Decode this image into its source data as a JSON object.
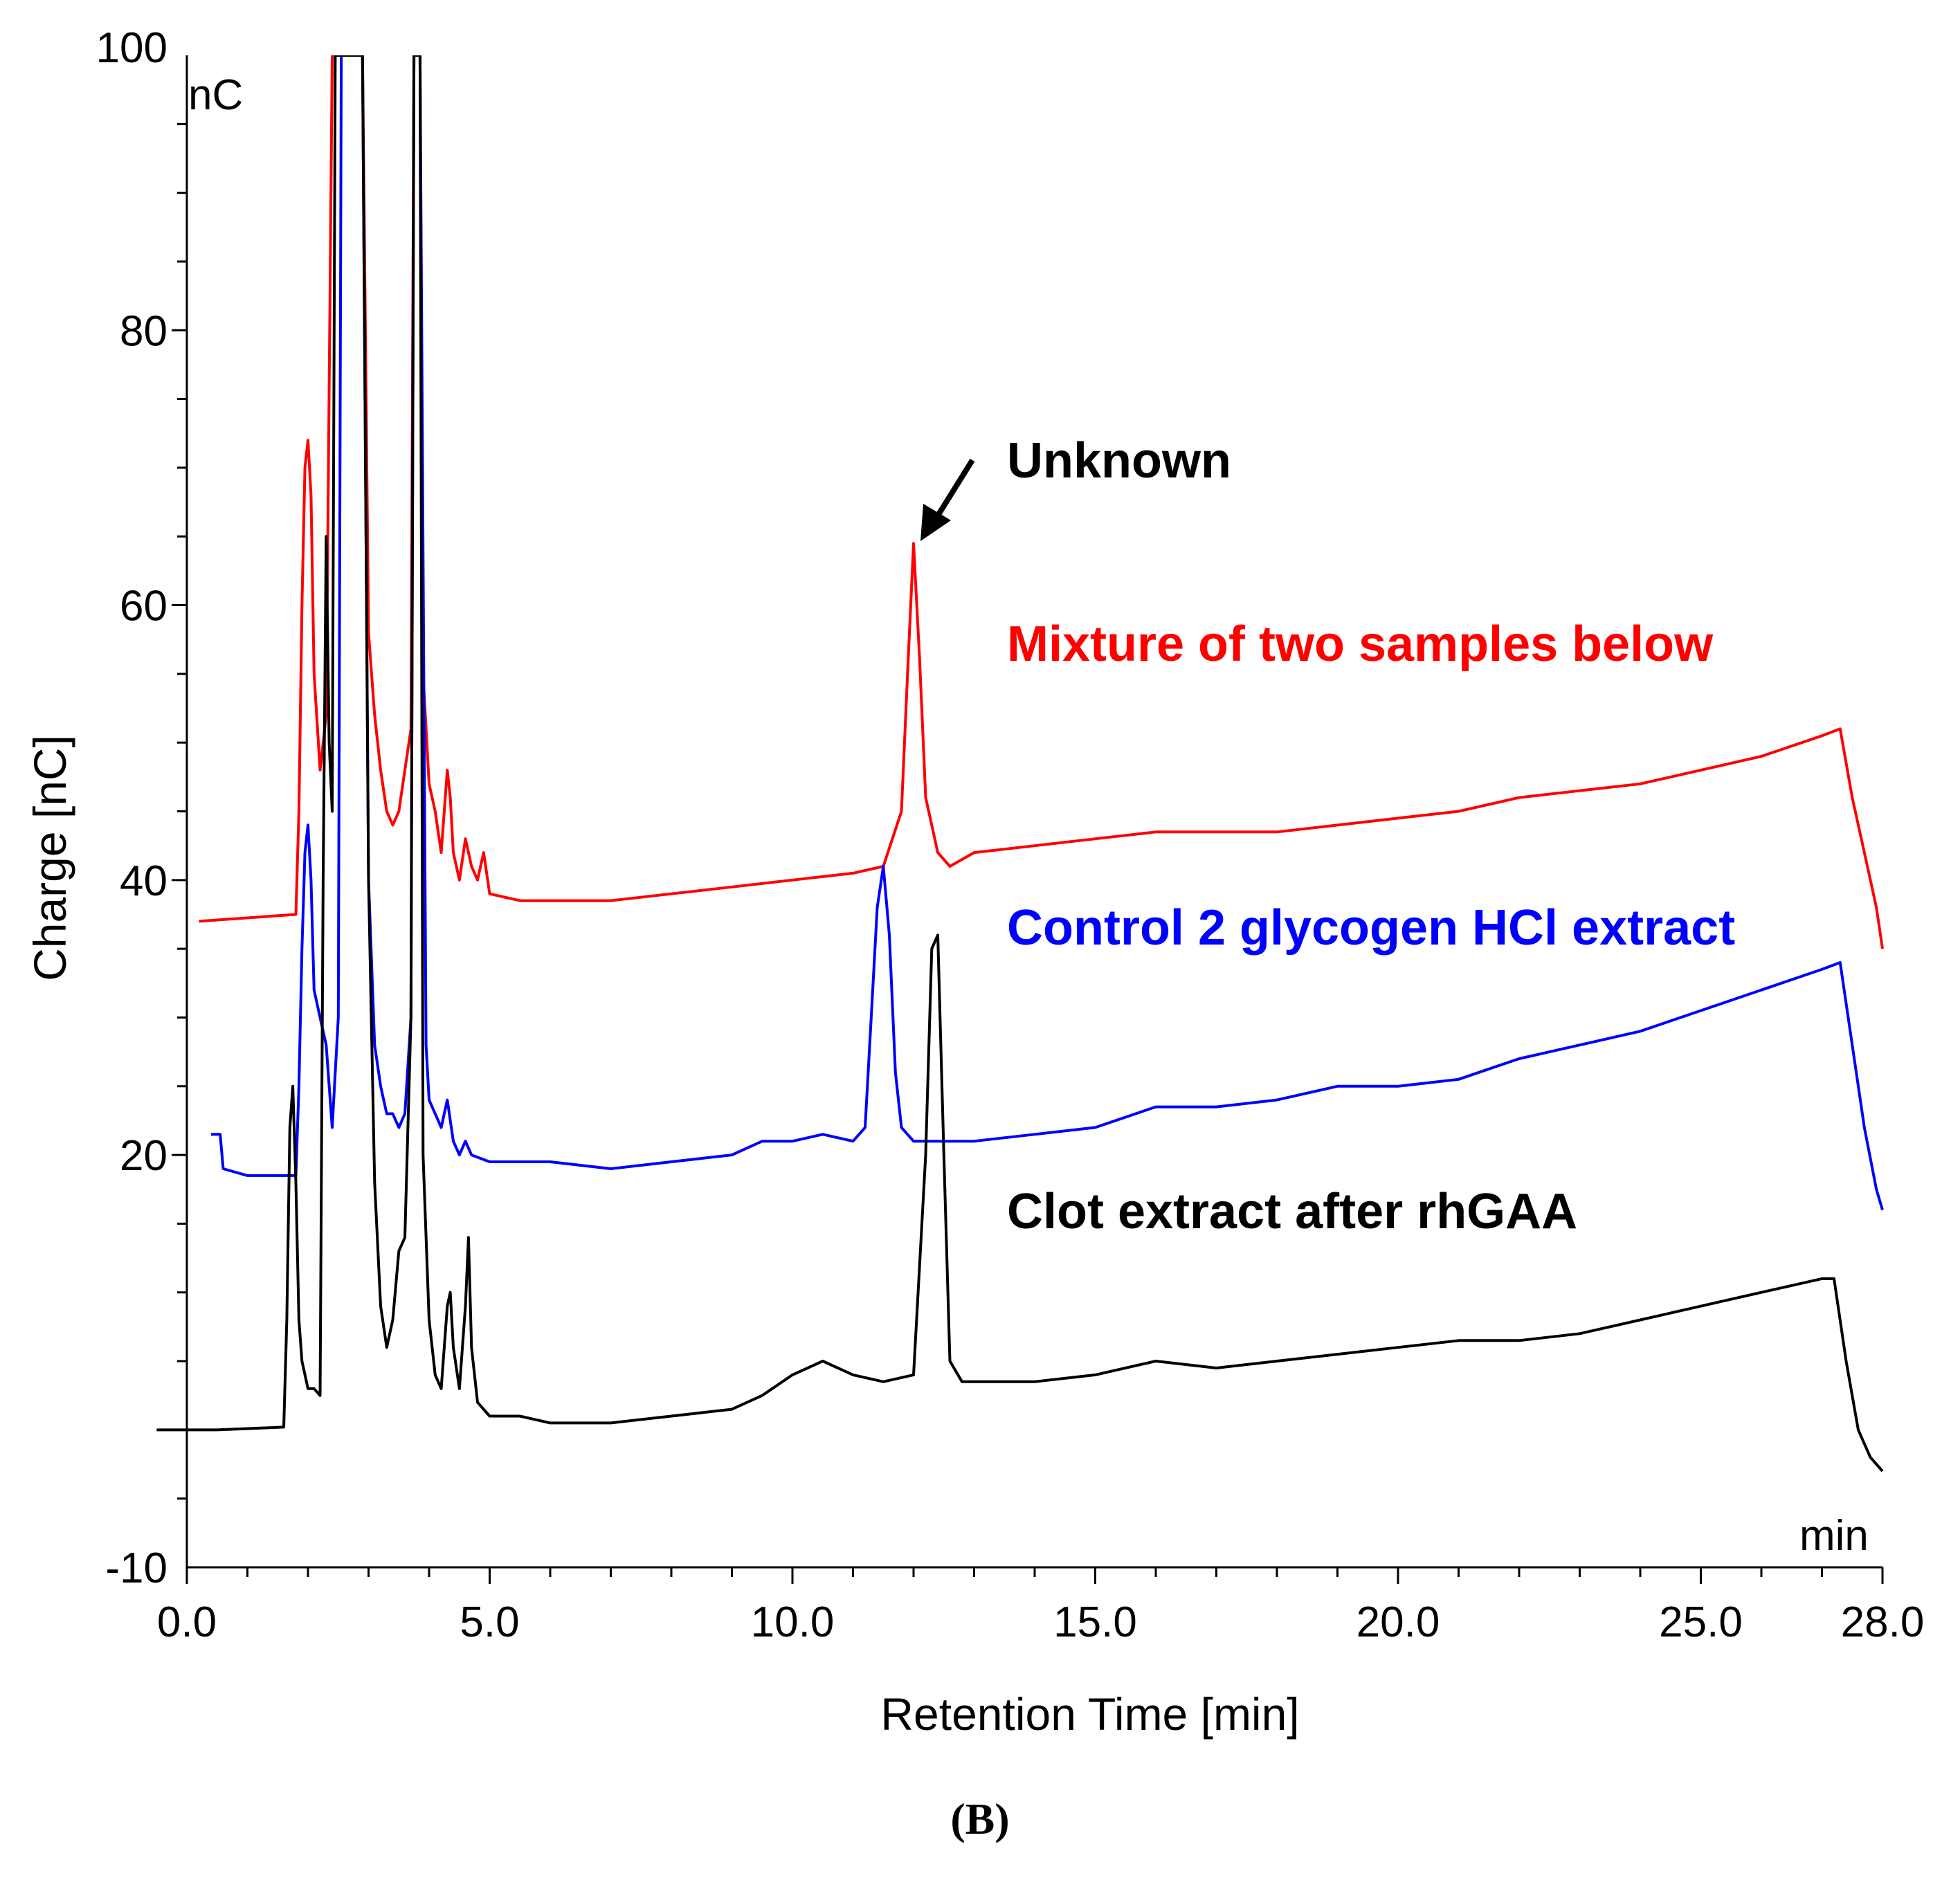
{
  "chart_data": {
    "type": "line",
    "title": "",
    "xlabel": "Retention Time [min]",
    "ylabel": "Charge [nC]",
    "x_unit": "min",
    "y_unit": "nC",
    "xlim": [
      0,
      28
    ],
    "ylim": [
      -10,
      100
    ],
    "x_ticks": [
      "0.0",
      "5.0",
      "10.0",
      "15.0",
      "20.0",
      "25.0",
      "28.0"
    ],
    "x_tick_values": [
      0,
      5,
      10,
      15,
      20,
      25,
      28
    ],
    "y_ticks": [
      "-10",
      "20",
      "40",
      "60",
      "80",
      "100"
    ],
    "y_tick_values": [
      -10,
      20,
      40,
      60,
      80,
      100
    ],
    "grid": false,
    "panel_label": "(B)",
    "annotation": {
      "text": "Unknown",
      "target_x": 12.0,
      "target_y": 64.5
    },
    "series": [
      {
        "name": "Mixture of two samples below",
        "color": "#ff0000",
        "points": [
          [
            0.2,
            37.0
          ],
          [
            1.8,
            37.5
          ],
          [
            1.85,
            45
          ],
          [
            1.9,
            60
          ],
          [
            1.95,
            70
          ],
          [
            2.0,
            72
          ],
          [
            2.05,
            68
          ],
          [
            2.1,
            55
          ],
          [
            2.2,
            48
          ],
          [
            2.3,
            52
          ],
          [
            2.4,
            100
          ],
          [
            2.6,
            100
          ],
          [
            2.7,
            100
          ],
          [
            2.8,
            100
          ],
          [
            2.9,
            100
          ],
          [
            3.0,
            58
          ],
          [
            3.1,
            52
          ],
          [
            3.2,
            48
          ],
          [
            3.3,
            45
          ],
          [
            3.4,
            44
          ],
          [
            3.5,
            45
          ],
          [
            3.6,
            48
          ],
          [
            3.7,
            51
          ],
          [
            3.75,
            100
          ],
          [
            3.85,
            100
          ],
          [
            3.9,
            55
          ],
          [
            4.0,
            47
          ],
          [
            4.1,
            45
          ],
          [
            4.2,
            42
          ],
          [
            4.3,
            48
          ],
          [
            4.35,
            46
          ],
          [
            4.4,
            42
          ],
          [
            4.5,
            40
          ],
          [
            4.6,
            43
          ],
          [
            4.7,
            41
          ],
          [
            4.8,
            40
          ],
          [
            4.9,
            42
          ],
          [
            5.0,
            39
          ],
          [
            5.5,
            38.5
          ],
          [
            6.0,
            38.5
          ],
          [
            7.0,
            38.5
          ],
          [
            8.0,
            39
          ],
          [
            9.0,
            39.5
          ],
          [
            10.0,
            40
          ],
          [
            11.0,
            40.5
          ],
          [
            11.5,
            41
          ],
          [
            11.8,
            45
          ],
          [
            11.9,
            55
          ],
          [
            12.0,
            64.5
          ],
          [
            12.1,
            56
          ],
          [
            12.2,
            46
          ],
          [
            12.4,
            42
          ],
          [
            12.6,
            41
          ],
          [
            13.0,
            42
          ],
          [
            14.0,
            42.5
          ],
          [
            15.0,
            43
          ],
          [
            16.0,
            43.5
          ],
          [
            17.0,
            43.5
          ],
          [
            18.0,
            43.5
          ],
          [
            19.0,
            44
          ],
          [
            20.0,
            44.5
          ],
          [
            21.0,
            45
          ],
          [
            22.0,
            46
          ],
          [
            23.0,
            46.5
          ],
          [
            24.0,
            47
          ],
          [
            25.0,
            48
          ],
          [
            26.0,
            49
          ],
          [
            27.0,
            50.5
          ],
          [
            27.3,
            51
          ],
          [
            27.5,
            46
          ],
          [
            27.7,
            42
          ],
          [
            27.9,
            38
          ],
          [
            28.0,
            35
          ]
        ]
      },
      {
        "name": "Control 2 glycogen HCl extract",
        "color": "#0000ff",
        "points": [
          [
            0.4,
            21.5
          ],
          [
            0.55,
            21.5
          ],
          [
            0.6,
            19
          ],
          [
            1.0,
            18.5
          ],
          [
            1.8,
            18.5
          ],
          [
            1.85,
            25
          ],
          [
            1.9,
            35
          ],
          [
            1.95,
            42
          ],
          [
            2.0,
            44
          ],
          [
            2.05,
            40
          ],
          [
            2.1,
            32
          ],
          [
            2.2,
            30
          ],
          [
            2.3,
            28
          ],
          [
            2.4,
            22
          ],
          [
            2.5,
            30
          ],
          [
            2.55,
            100
          ],
          [
            2.6,
            100
          ],
          [
            2.7,
            100
          ],
          [
            2.8,
            100
          ],
          [
            2.9,
            100
          ],
          [
            3.0,
            40
          ],
          [
            3.1,
            28
          ],
          [
            3.2,
            25
          ],
          [
            3.3,
            23
          ],
          [
            3.4,
            23
          ],
          [
            3.5,
            22
          ],
          [
            3.6,
            23
          ],
          [
            3.7,
            30
          ],
          [
            3.75,
            100
          ],
          [
            3.85,
            100
          ],
          [
            3.95,
            28
          ],
          [
            4.0,
            24
          ],
          [
            4.1,
            23
          ],
          [
            4.2,
            22
          ],
          [
            4.3,
            24
          ],
          [
            4.4,
            21
          ],
          [
            4.5,
            20
          ],
          [
            4.6,
            21
          ],
          [
            4.7,
            20
          ],
          [
            5.0,
            19.5
          ],
          [
            6.0,
            19.5
          ],
          [
            7.0,
            19
          ],
          [
            8.0,
            19.5
          ],
          [
            9.0,
            20
          ],
          [
            9.5,
            21
          ],
          [
            10.0,
            21
          ],
          [
            10.5,
            21.5
          ],
          [
            11.0,
            21
          ],
          [
            11.2,
            22
          ],
          [
            11.3,
            30
          ],
          [
            11.4,
            38
          ],
          [
            11.5,
            41
          ],
          [
            11.6,
            36
          ],
          [
            11.7,
            26
          ],
          [
            11.8,
            22
          ],
          [
            12.0,
            21
          ],
          [
            13.0,
            21
          ],
          [
            14.0,
            21.5
          ],
          [
            15.0,
            22
          ],
          [
            16.0,
            23.5
          ],
          [
            17.0,
            23.5
          ],
          [
            18.0,
            24
          ],
          [
            19.0,
            25
          ],
          [
            20.0,
            25
          ],
          [
            21.0,
            25.5
          ],
          [
            22.0,
            27
          ],
          [
            23.0,
            28
          ],
          [
            24.0,
            29
          ],
          [
            25.0,
            30.5
          ],
          [
            26.0,
            32
          ],
          [
            27.0,
            33.5
          ],
          [
            27.3,
            34
          ],
          [
            27.5,
            28
          ],
          [
            27.7,
            22
          ],
          [
            27.9,
            17.5
          ],
          [
            28.0,
            16
          ]
        ]
      },
      {
        "name": "Clot extract after rhGAA",
        "color": "#000000",
        "points": [
          [
            -0.5,
            0
          ],
          [
            0.5,
            0
          ],
          [
            1.6,
            0.2
          ],
          [
            1.65,
            8
          ],
          [
            1.7,
            22
          ],
          [
            1.75,
            25
          ],
          [
            1.8,
            18
          ],
          [
            1.85,
            8
          ],
          [
            1.9,
            5
          ],
          [
            2.0,
            3
          ],
          [
            2.1,
            3
          ],
          [
            2.2,
            2.5
          ],
          [
            2.25,
            40
          ],
          [
            2.3,
            65
          ],
          [
            2.35,
            50
          ],
          [
            2.4,
            45
          ],
          [
            2.45,
            100
          ],
          [
            2.6,
            100
          ],
          [
            2.8,
            100
          ],
          [
            2.9,
            100
          ],
          [
            3.0,
            40
          ],
          [
            3.1,
            18
          ],
          [
            3.2,
            9
          ],
          [
            3.3,
            6
          ],
          [
            3.4,
            8
          ],
          [
            3.5,
            13
          ],
          [
            3.6,
            14
          ],
          [
            3.7,
            30
          ],
          [
            3.75,
            100
          ],
          [
            3.85,
            100
          ],
          [
            3.9,
            20
          ],
          [
            4.0,
            8
          ],
          [
            4.1,
            4
          ],
          [
            4.2,
            3
          ],
          [
            4.3,
            9
          ],
          [
            4.35,
            10
          ],
          [
            4.4,
            6
          ],
          [
            4.5,
            3
          ],
          [
            4.6,
            9
          ],
          [
            4.65,
            14
          ],
          [
            4.7,
            6
          ],
          [
            4.8,
            2
          ],
          [
            5.0,
            1
          ],
          [
            5.5,
            1
          ],
          [
            6.0,
            0.5
          ],
          [
            7.0,
            0.5
          ],
          [
            8.0,
            1
          ],
          [
            9.0,
            1.5
          ],
          [
            9.5,
            2.5
          ],
          [
            10.0,
            4
          ],
          [
            10.5,
            5
          ],
          [
            11.0,
            4
          ],
          [
            11.5,
            3.5
          ],
          [
            12.0,
            4
          ],
          [
            12.2,
            20
          ],
          [
            12.3,
            35
          ],
          [
            12.4,
            36
          ],
          [
            12.5,
            20
          ],
          [
            12.6,
            5
          ],
          [
            12.8,
            3.5
          ],
          [
            13.0,
            3.5
          ],
          [
            14.0,
            3.5
          ],
          [
            15.0,
            4
          ],
          [
            16.0,
            5
          ],
          [
            17.0,
            4.5
          ],
          [
            18.0,
            5
          ],
          [
            19.0,
            5.5
          ],
          [
            20.0,
            6
          ],
          [
            21.0,
            6.5
          ],
          [
            22.0,
            6.5
          ],
          [
            23.0,
            7
          ],
          [
            24.0,
            8
          ],
          [
            25.0,
            9
          ],
          [
            26.0,
            10
          ],
          [
            27.0,
            11
          ],
          [
            27.2,
            11
          ],
          [
            27.4,
            5
          ],
          [
            27.6,
            0
          ],
          [
            27.8,
            -2
          ],
          [
            28.0,
            -3
          ]
        ]
      }
    ],
    "series_labels": [
      {
        "text": "Mixture of two samples below",
        "color": "#ff0000"
      },
      {
        "text": "Control 2 glycogen HCl extract",
        "color": "#0000ff"
      },
      {
        "text": "Clot extract after rhGAA",
        "color": "#000000"
      }
    ]
  }
}
